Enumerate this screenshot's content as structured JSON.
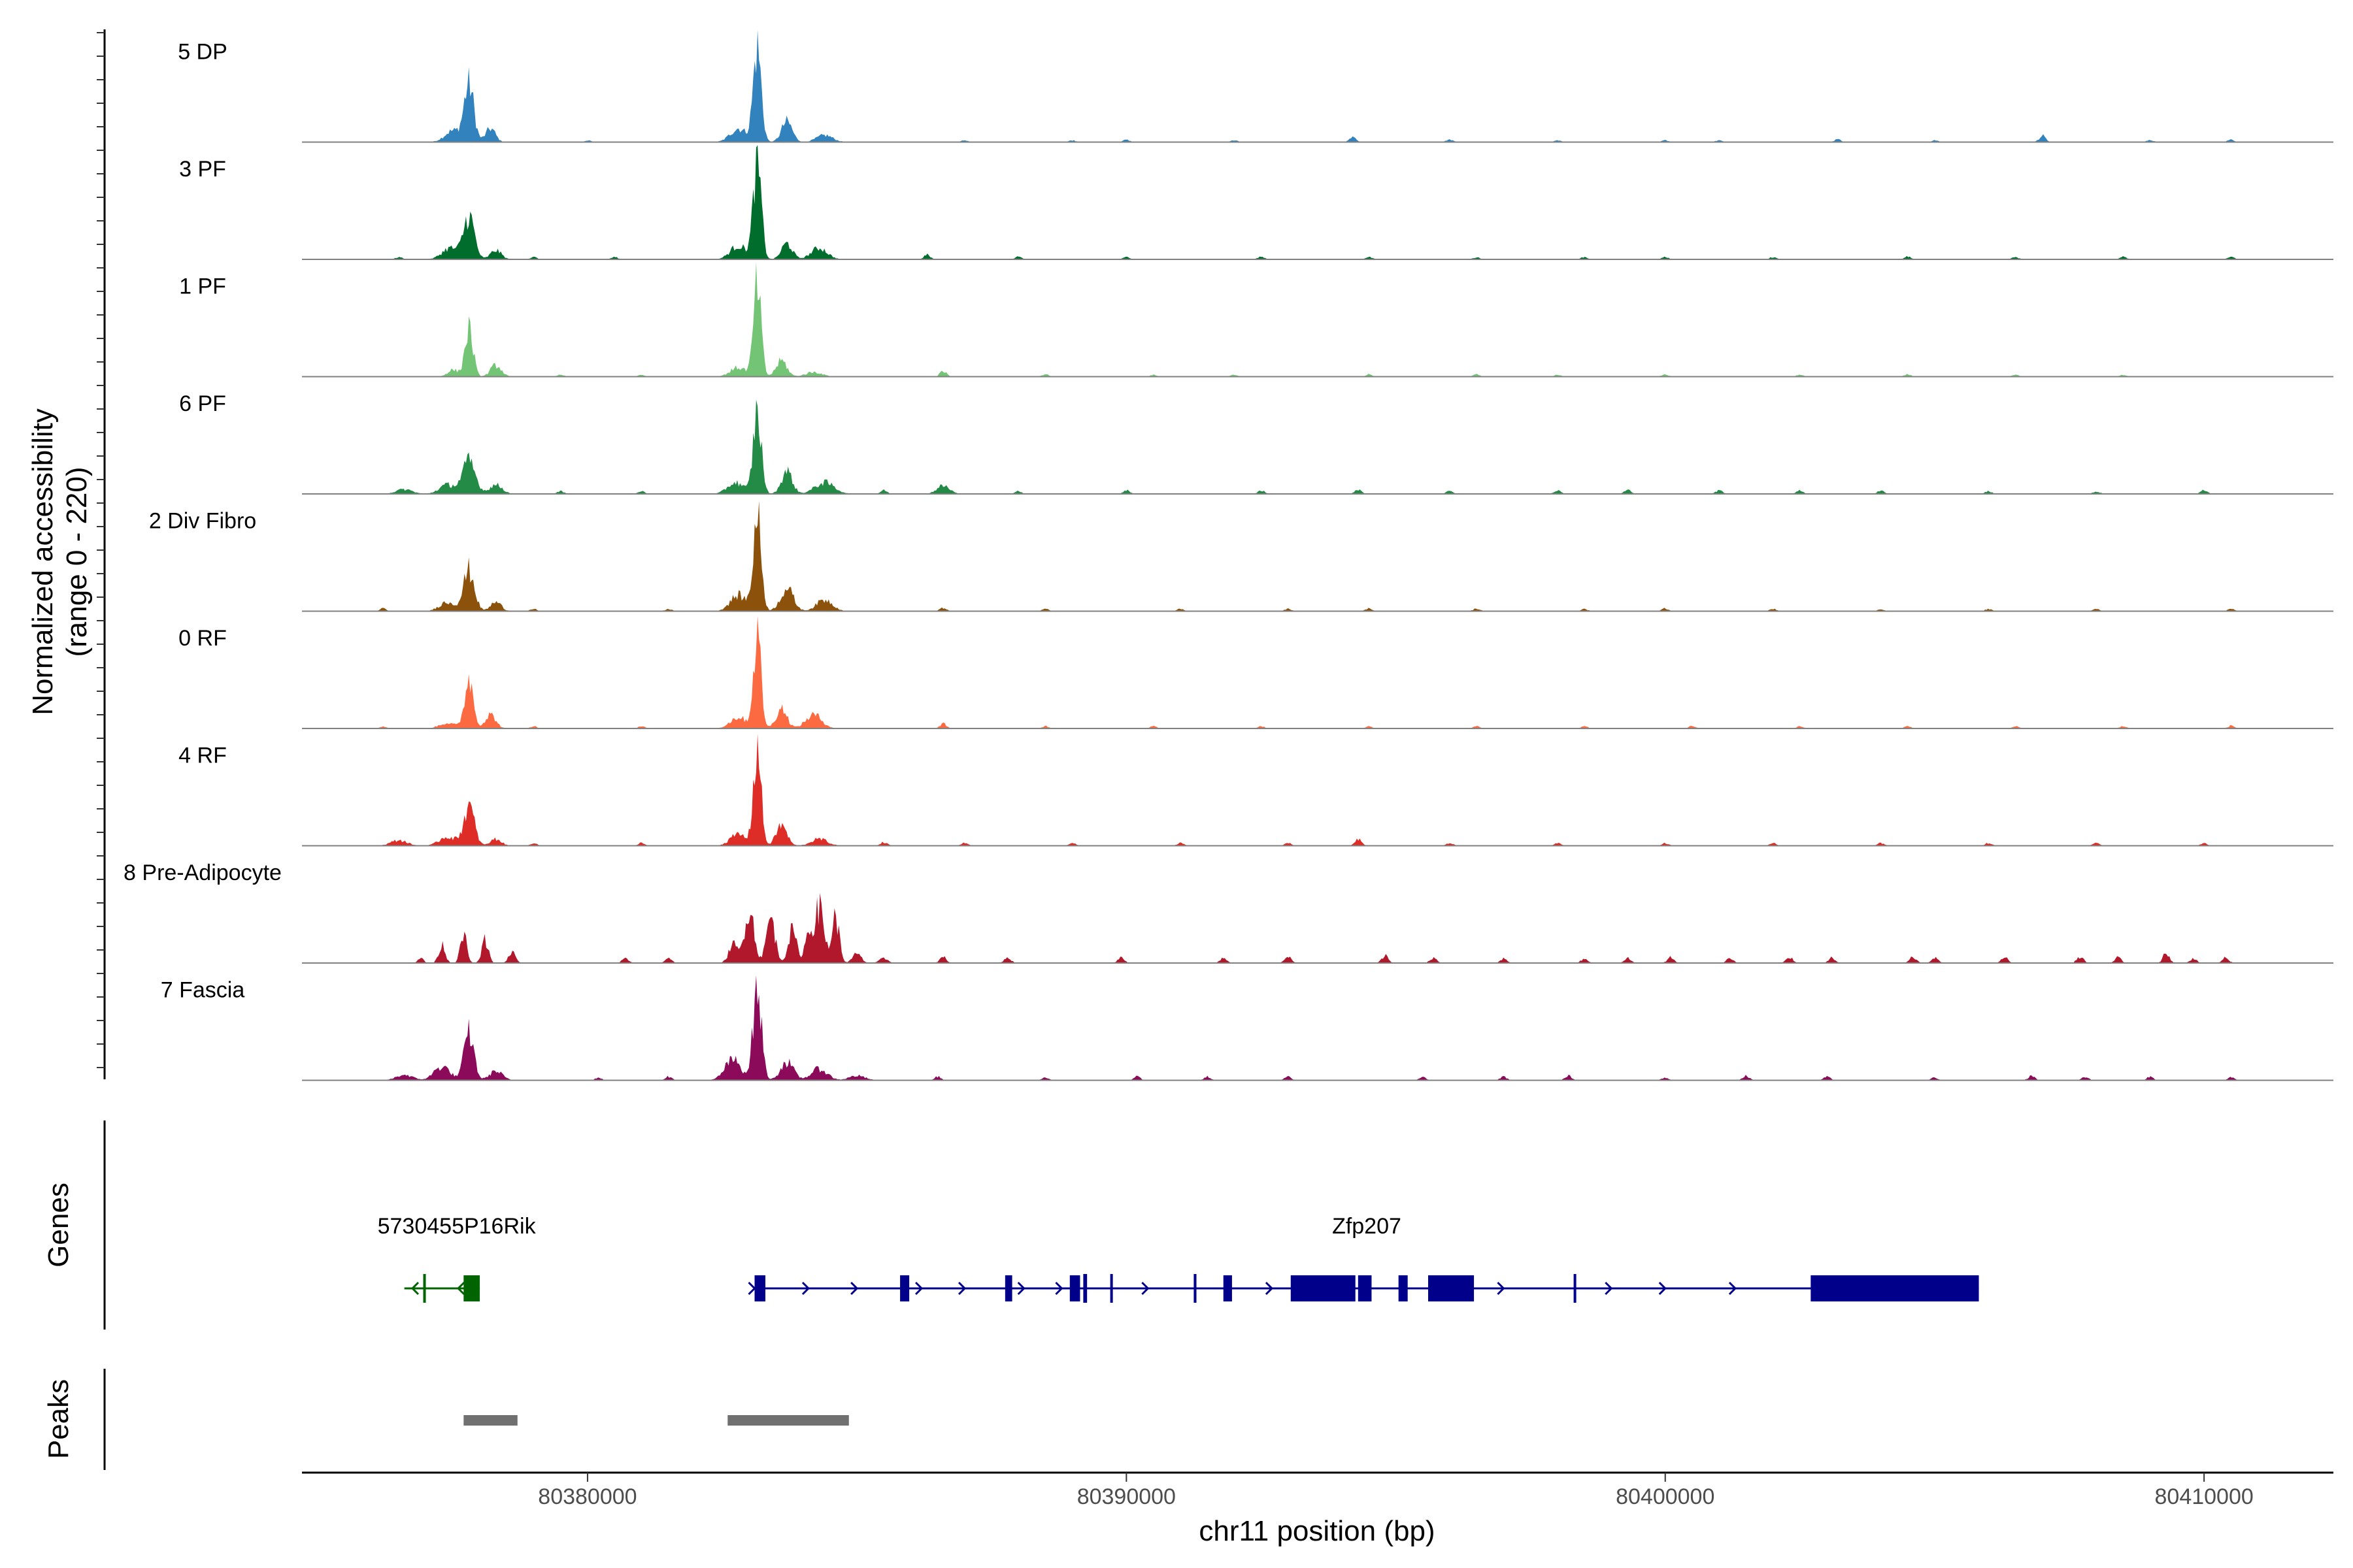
{
  "chart_data": {
    "type": "area",
    "ylabel": "Normalized accessibility",
    "ylabel_range": "(range 0 - 220)",
    "y_range": [
      0,
      220
    ],
    "xlabel": "chr11 position (bp)",
    "x_range": [
      80374700,
      80412400
    ],
    "x_ticks": [
      80380000,
      80390000,
      80400000,
      80410000
    ],
    "x_tick_labels": [
      "80380000",
      "80390000",
      "80400000",
      "80410000"
    ],
    "baseline_color": "#808080",
    "tracks": [
      {
        "name": "5 DP",
        "color": "#3182bd",
        "peaks": [
          [
            80377800,
            125,
            90
          ],
          [
            80377500,
            25,
            150
          ],
          [
            80378200,
            30,
            90
          ],
          [
            80383150,
            205,
            75
          ],
          [
            80382800,
            30,
            150
          ],
          [
            80383700,
            45,
            100
          ],
          [
            80384400,
            15,
            150
          ]
        ],
        "noise": [
          [
            80380000,
            4
          ],
          [
            80387000,
            4
          ],
          [
            80389000,
            4
          ],
          [
            80390000,
            5
          ],
          [
            80392000,
            4
          ],
          [
            80394200,
            10
          ],
          [
            80396000,
            6
          ],
          [
            80398000,
            4
          ],
          [
            80400000,
            4
          ],
          [
            80401000,
            4
          ],
          [
            80403200,
            6
          ],
          [
            80405000,
            4
          ],
          [
            80407000,
            14
          ],
          [
            80409000,
            5
          ],
          [
            80410500,
            5
          ]
        ]
      },
      {
        "name": "3 PF",
        "color": "#006d2c",
        "peaks": [
          [
            80377800,
            95,
            100
          ],
          [
            80377450,
            25,
            150
          ],
          [
            80378300,
            20,
            100
          ],
          [
            80383150,
            210,
            75
          ],
          [
            80382800,
            30,
            150
          ],
          [
            80383700,
            35,
            100
          ],
          [
            80384300,
            25,
            150
          ]
        ],
        "noise": [
          [
            80376500,
            5
          ],
          [
            80379000,
            5
          ],
          [
            80380500,
            5
          ],
          [
            80386300,
            10
          ],
          [
            80388000,
            6
          ],
          [
            80390000,
            5
          ],
          [
            80392500,
            6
          ],
          [
            80394500,
            6
          ],
          [
            80396500,
            5
          ],
          [
            80398500,
            5
          ],
          [
            80400000,
            5
          ],
          [
            80402000,
            5
          ],
          [
            80404500,
            6
          ],
          [
            80406500,
            5
          ],
          [
            80408500,
            6
          ],
          [
            80410500,
            6
          ]
        ]
      },
      {
        "name": "1 PF",
        "color": "#74c476",
        "peaks": [
          [
            80377800,
            105,
            75
          ],
          [
            80378300,
            25,
            100
          ],
          [
            80377500,
            15,
            100
          ],
          [
            80383150,
            200,
            70
          ],
          [
            80383600,
            35,
            100
          ],
          [
            80382800,
            20,
            150
          ],
          [
            80384200,
            10,
            150
          ]
        ],
        "noise": [
          [
            80379500,
            4
          ],
          [
            80381000,
            4
          ],
          [
            80386600,
            12
          ],
          [
            80388500,
            5
          ],
          [
            80390500,
            4
          ],
          [
            80392000,
            4
          ],
          [
            80394500,
            5
          ],
          [
            80396500,
            5
          ],
          [
            80398000,
            4
          ],
          [
            80400000,
            5
          ],
          [
            80402500,
            4
          ],
          [
            80404500,
            5
          ],
          [
            80406500,
            4
          ],
          [
            80408500,
            4
          ]
        ]
      },
      {
        "name": "6 PF",
        "color": "#238b45",
        "peaks": [
          [
            80377800,
            70,
            120
          ],
          [
            80377400,
            20,
            150
          ],
          [
            80378300,
            20,
            120
          ],
          [
            80383150,
            180,
            75
          ],
          [
            80382750,
            25,
            150
          ],
          [
            80383700,
            50,
            100
          ],
          [
            80384400,
            25,
            180
          ],
          [
            80376600,
            10,
            150
          ],
          [
            80386600,
            18,
            120
          ]
        ],
        "noise": [
          [
            80379500,
            6
          ],
          [
            80381000,
            6
          ],
          [
            80385500,
            8
          ],
          [
            80388000,
            6
          ],
          [
            80390000,
            8
          ],
          [
            80392500,
            8
          ],
          [
            80394300,
            10
          ],
          [
            80396000,
            8
          ],
          [
            80398000,
            8
          ],
          [
            80399300,
            10
          ],
          [
            80401000,
            8
          ],
          [
            80402500,
            8
          ],
          [
            80404000,
            8
          ],
          [
            80406000,
            6
          ],
          [
            80408000,
            6
          ],
          [
            80410000,
            8
          ]
        ]
      },
      {
        "name": "2 Div Fibro",
        "color": "#8c510a",
        "peaks": [
          [
            80377800,
            90,
            100
          ],
          [
            80377400,
            20,
            150
          ],
          [
            80378300,
            20,
            100
          ],
          [
            80383150,
            205,
            75
          ],
          [
            80382800,
            35,
            150
          ],
          [
            80383700,
            50,
            120
          ],
          [
            80384400,
            25,
            150
          ]
        ],
        "noise": [
          [
            80376200,
            6
          ],
          [
            80379000,
            5
          ],
          [
            80381500,
            5
          ],
          [
            80386600,
            8
          ],
          [
            80388500,
            5
          ],
          [
            80391000,
            5
          ],
          [
            80393000,
            5
          ],
          [
            80394500,
            6
          ],
          [
            80396500,
            6
          ],
          [
            80398500,
            5
          ],
          [
            80400000,
            6
          ],
          [
            80402000,
            5
          ],
          [
            80404000,
            5
          ],
          [
            80406000,
            5
          ],
          [
            80408000,
            5
          ],
          [
            80410500,
            5
          ]
        ]
      },
      {
        "name": "0 RF",
        "color": "#fc6a41",
        "peaks": [
          [
            80377800,
            110,
            80
          ],
          [
            80378200,
            30,
            100
          ],
          [
            80377400,
            12,
            150
          ],
          [
            80383150,
            205,
            70
          ],
          [
            80383600,
            45,
            100
          ],
          [
            80384200,
            30,
            150
          ],
          [
            80382800,
            25,
            150
          ]
        ],
        "noise": [
          [
            80376200,
            5
          ],
          [
            80379000,
            5
          ],
          [
            80381000,
            5
          ],
          [
            80386600,
            10
          ],
          [
            80388500,
            5
          ],
          [
            80390500,
            5
          ],
          [
            80392500,
            5
          ],
          [
            80394500,
            5
          ],
          [
            80396500,
            5
          ],
          [
            80398500,
            5
          ],
          [
            80400500,
            5
          ],
          [
            80402500,
            5
          ],
          [
            80404500,
            5
          ],
          [
            80406500,
            5
          ],
          [
            80408500,
            5
          ],
          [
            80410500,
            6
          ]
        ]
      },
      {
        "name": "4 RF",
        "color": "#de2d26",
        "peaks": [
          [
            80377800,
            85,
            100
          ],
          [
            80377400,
            20,
            150
          ],
          [
            80378300,
            15,
            100
          ],
          [
            80383150,
            215,
            70
          ],
          [
            80383600,
            45,
            100
          ],
          [
            80382800,
            25,
            150
          ],
          [
            80384300,
            15,
            150
          ],
          [
            80376500,
            12,
            150
          ]
        ],
        "noise": [
          [
            80379000,
            6
          ],
          [
            80381000,
            6
          ],
          [
            80385500,
            8
          ],
          [
            80387000,
            6
          ],
          [
            80389000,
            6
          ],
          [
            80391000,
            6
          ],
          [
            80393000,
            6
          ],
          [
            80394300,
            16
          ],
          [
            80396000,
            6
          ],
          [
            80398000,
            6
          ],
          [
            80400000,
            6
          ],
          [
            80402000,
            6
          ],
          [
            80404000,
            6
          ],
          [
            80406000,
            6
          ],
          [
            80408000,
            6
          ],
          [
            80410000,
            6
          ]
        ]
      },
      {
        "name": "8 Pre-Adipocyte",
        "color": "#b2182b",
        "peaks": [
          [
            80377700,
            60,
            60
          ],
          [
            80377300,
            40,
            60
          ],
          [
            80378100,
            50,
            60
          ],
          [
            80378600,
            25,
            60
          ],
          [
            80376900,
            12,
            50
          ],
          [
            80382700,
            40,
            80
          ],
          [
            80383000,
            120,
            90
          ],
          [
            80383400,
            100,
            80
          ],
          [
            80383800,
            70,
            80
          ],
          [
            80384300,
            120,
            90
          ],
          [
            80384600,
            100,
            70
          ],
          [
            80384100,
            60,
            70
          ],
          [
            80385000,
            20,
            80
          ],
          [
            80385500,
            10,
            80
          ],
          [
            80381500,
            12,
            60
          ],
          [
            80380700,
            10,
            60
          ]
        ],
        "noise": [
          [
            80386600,
            14
          ],
          [
            80387800,
            12
          ],
          [
            80389900,
            12
          ],
          [
            80391800,
            10
          ],
          [
            80393000,
            14
          ],
          [
            80394800,
            16
          ],
          [
            80395700,
            12
          ],
          [
            80397000,
            10
          ],
          [
            80398500,
            10
          ],
          [
            80399300,
            12
          ],
          [
            80400100,
            12
          ],
          [
            80401200,
            12
          ],
          [
            80402300,
            14
          ],
          [
            80403100,
            12
          ],
          [
            80404600,
            14
          ],
          [
            80405000,
            12
          ],
          [
            80406300,
            12
          ],
          [
            80407700,
            14
          ],
          [
            80408400,
            12
          ],
          [
            80409300,
            22
          ],
          [
            80409800,
            10
          ],
          [
            80410400,
            12
          ]
        ]
      },
      {
        "name": "7 Fascia",
        "color": "#8b0a5a",
        "peaks": [
          [
            80377800,
            105,
            90
          ],
          [
            80377300,
            30,
            150
          ],
          [
            80378300,
            20,
            120
          ],
          [
            80376600,
            12,
            150
          ],
          [
            80383150,
            195,
            80
          ],
          [
            80382700,
            45,
            150
          ],
          [
            80383700,
            40,
            120
          ],
          [
            80384300,
            25,
            150
          ],
          [
            80385000,
            10,
            150
          ]
        ],
        "noise": [
          [
            80380200,
            6
          ],
          [
            80381500,
            8
          ],
          [
            80386500,
            8
          ],
          [
            80388500,
            6
          ],
          [
            80390200,
            8
          ],
          [
            80391500,
            8
          ],
          [
            80393000,
            8
          ],
          [
            80395500,
            8
          ],
          [
            80397000,
            8
          ],
          [
            80398200,
            10
          ],
          [
            80400000,
            6
          ],
          [
            80401500,
            10
          ],
          [
            80403000,
            8
          ],
          [
            80405000,
            6
          ],
          [
            80406800,
            10
          ],
          [
            80407800,
            8
          ],
          [
            80409000,
            8
          ],
          [
            80410500,
            6
          ]
        ]
      }
    ],
    "gene_label": "Genes",
    "genes": [
      {
        "name": "5730455P16Rik",
        "color": "#006400",
        "strand": "-",
        "start": 80376600,
        "end": 80378000,
        "exons": [
          [
            80376950,
            80376990
          ],
          [
            80377700,
            80378000
          ]
        ],
        "arrows": [
          80376750,
          80377600
        ]
      },
      {
        "name": "Zfp207",
        "color": "#00008b",
        "strand": "+",
        "start": 80383100,
        "end": 80405820,
        "exons": [
          [
            80383100,
            80383300
          ],
          [
            80385800,
            80385970
          ],
          [
            80387750,
            80387880
          ],
          [
            80388950,
            80389140
          ],
          [
            80389200,
            80389270
          ],
          [
            80389700,
            80389740
          ],
          [
            80391250,
            80391300
          ],
          [
            80391800,
            80391960
          ],
          [
            80393050,
            80394250
          ],
          [
            80394300,
            80394550
          ],
          [
            80395050,
            80395220
          ],
          [
            80395600,
            80396450
          ],
          [
            80398300,
            80398340
          ],
          [
            80402700,
            80405820
          ]
        ],
        "arrows": [
          80383100,
          80384100,
          80385000,
          80386200,
          80387000,
          80388100,
          80388800,
          80390400,
          80392700,
          80397000,
          80399000,
          80400000,
          80401300
        ]
      }
    ],
    "peak_label": "Peaks",
    "peak_color": "#707070",
    "peak_regions": [
      [
        80377700,
        80378700
      ],
      [
        80382600,
        80384850
      ]
    ]
  }
}
